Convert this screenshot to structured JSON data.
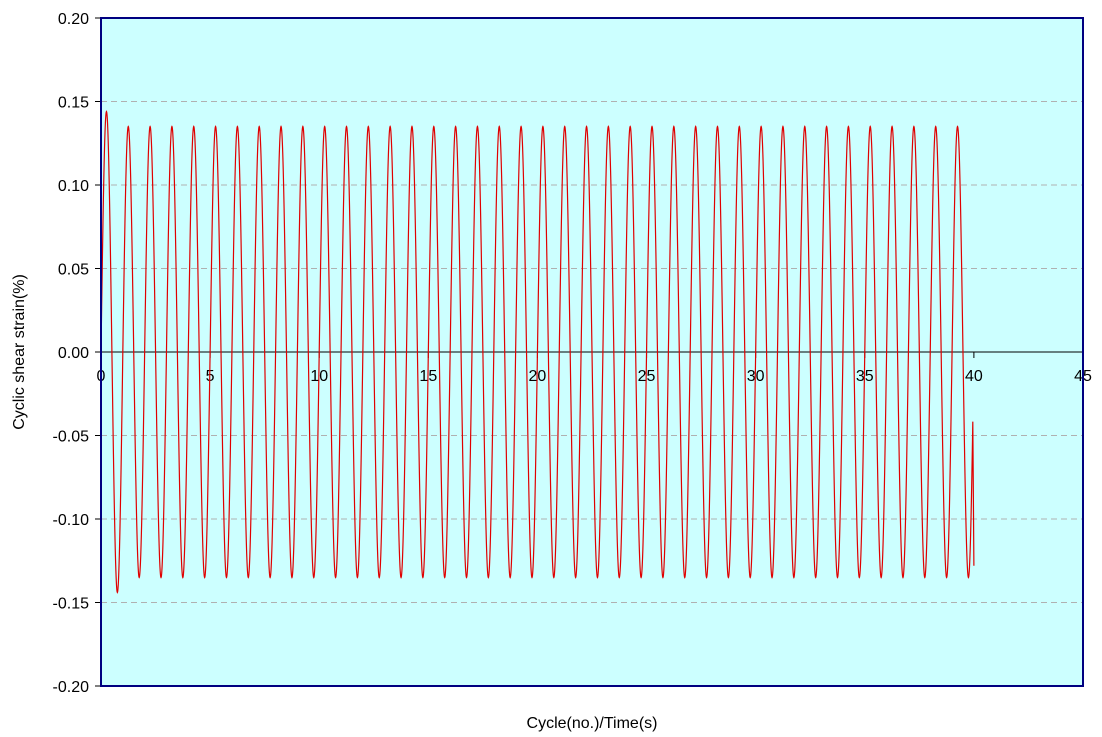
{
  "chart_data": {
    "type": "line",
    "title": "",
    "xlabel": "Cycle(no.)/Time(s)",
    "ylabel": "Cyclic shear strain(%)",
    "xlim": [
      0,
      45
    ],
    "ylim": [
      -0.2,
      0.2
    ],
    "x_ticks": [
      0,
      5,
      10,
      15,
      20,
      25,
      30,
      35,
      40,
      45
    ],
    "y_ticks": [
      -0.2,
      -0.15,
      -0.1,
      -0.05,
      0,
      0.05,
      0.1,
      0.15,
      0.2
    ],
    "x_tick_labels": [
      "0",
      "5",
      "10",
      "15",
      "20",
      "25",
      "30",
      "35",
      "40",
      "45"
    ],
    "y_tick_labels": [
      "-0.20",
      "-0.15",
      "-0.10",
      "-0.05",
      "0.00",
      "0.05",
      "0.10",
      "0.15",
      "0.20"
    ],
    "grid": "horizontal dashed",
    "legend": "none",
    "series": [
      {
        "color": "#e00000",
        "waveform": "sinusoid",
        "start_x": 0,
        "end_x": 40,
        "period": 1,
        "amplitude": 0.135,
        "first_peak": 0.143,
        "first_trough": -0.144,
        "final_value": -0.128
      }
    ]
  },
  "colors": {
    "plot_background": "#ccffff",
    "plot_border": "#000080",
    "series_line": "#e00000",
    "grid": "#b0b0b0",
    "zero_line": "#000000"
  }
}
